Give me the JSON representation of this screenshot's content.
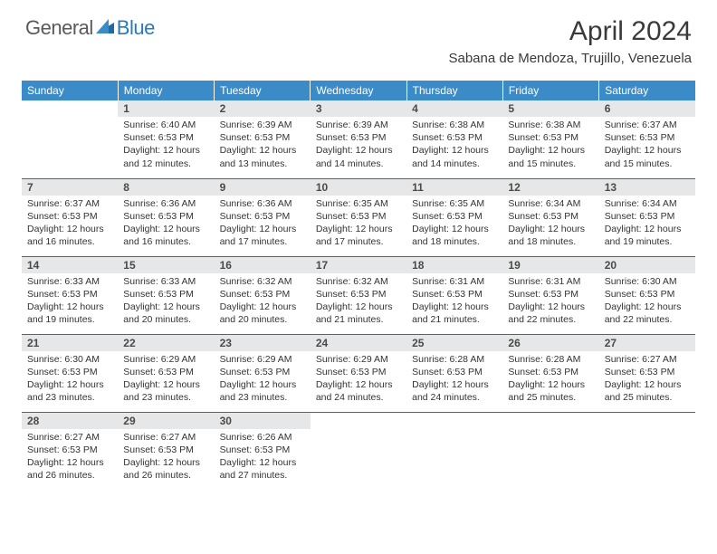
{
  "brand": {
    "general": "General",
    "blue": "Blue",
    "logo_color": "#2a7ab8",
    "text_color": "#5a5a5a"
  },
  "title": "April 2024",
  "location": "Sabana de Mendoza, Trujillo, Venezuela",
  "colors": {
    "header_bg": "#3b8bc9",
    "header_fg": "#ffffff",
    "daynum_bg": "#e6e7e8",
    "daynum_fg": "#4a4a4a",
    "cell_border": "#2a6fa8",
    "body_text": "#333333",
    "page_bg": "#ffffff"
  },
  "typography": {
    "title_fontsize": 30,
    "location_fontsize": 15,
    "dayheader_fontsize": 12,
    "daynum_fontsize": 12,
    "body_fontsize": 10.5,
    "font_family": "Arial"
  },
  "day_headers": [
    "Sunday",
    "Monday",
    "Tuesday",
    "Wednesday",
    "Thursday",
    "Friday",
    "Saturday"
  ],
  "weeks": [
    [
      {
        "empty": true
      },
      {
        "num": "1",
        "sunrise": "Sunrise: 6:40 AM",
        "sunset": "Sunset: 6:53 PM",
        "daylight": "Daylight: 12 hours and 12 minutes."
      },
      {
        "num": "2",
        "sunrise": "Sunrise: 6:39 AM",
        "sunset": "Sunset: 6:53 PM",
        "daylight": "Daylight: 12 hours and 13 minutes."
      },
      {
        "num": "3",
        "sunrise": "Sunrise: 6:39 AM",
        "sunset": "Sunset: 6:53 PM",
        "daylight": "Daylight: 12 hours and 14 minutes."
      },
      {
        "num": "4",
        "sunrise": "Sunrise: 6:38 AM",
        "sunset": "Sunset: 6:53 PM",
        "daylight": "Daylight: 12 hours and 14 minutes."
      },
      {
        "num": "5",
        "sunrise": "Sunrise: 6:38 AM",
        "sunset": "Sunset: 6:53 PM",
        "daylight": "Daylight: 12 hours and 15 minutes."
      },
      {
        "num": "6",
        "sunrise": "Sunrise: 6:37 AM",
        "sunset": "Sunset: 6:53 PM",
        "daylight": "Daylight: 12 hours and 15 minutes."
      }
    ],
    [
      {
        "num": "7",
        "sunrise": "Sunrise: 6:37 AM",
        "sunset": "Sunset: 6:53 PM",
        "daylight": "Daylight: 12 hours and 16 minutes."
      },
      {
        "num": "8",
        "sunrise": "Sunrise: 6:36 AM",
        "sunset": "Sunset: 6:53 PM",
        "daylight": "Daylight: 12 hours and 16 minutes."
      },
      {
        "num": "9",
        "sunrise": "Sunrise: 6:36 AM",
        "sunset": "Sunset: 6:53 PM",
        "daylight": "Daylight: 12 hours and 17 minutes."
      },
      {
        "num": "10",
        "sunrise": "Sunrise: 6:35 AM",
        "sunset": "Sunset: 6:53 PM",
        "daylight": "Daylight: 12 hours and 17 minutes."
      },
      {
        "num": "11",
        "sunrise": "Sunrise: 6:35 AM",
        "sunset": "Sunset: 6:53 PM",
        "daylight": "Daylight: 12 hours and 18 minutes."
      },
      {
        "num": "12",
        "sunrise": "Sunrise: 6:34 AM",
        "sunset": "Sunset: 6:53 PM",
        "daylight": "Daylight: 12 hours and 18 minutes."
      },
      {
        "num": "13",
        "sunrise": "Sunrise: 6:34 AM",
        "sunset": "Sunset: 6:53 PM",
        "daylight": "Daylight: 12 hours and 19 minutes."
      }
    ],
    [
      {
        "num": "14",
        "sunrise": "Sunrise: 6:33 AM",
        "sunset": "Sunset: 6:53 PM",
        "daylight": "Daylight: 12 hours and 19 minutes."
      },
      {
        "num": "15",
        "sunrise": "Sunrise: 6:33 AM",
        "sunset": "Sunset: 6:53 PM",
        "daylight": "Daylight: 12 hours and 20 minutes."
      },
      {
        "num": "16",
        "sunrise": "Sunrise: 6:32 AM",
        "sunset": "Sunset: 6:53 PM",
        "daylight": "Daylight: 12 hours and 20 minutes."
      },
      {
        "num": "17",
        "sunrise": "Sunrise: 6:32 AM",
        "sunset": "Sunset: 6:53 PM",
        "daylight": "Daylight: 12 hours and 21 minutes."
      },
      {
        "num": "18",
        "sunrise": "Sunrise: 6:31 AM",
        "sunset": "Sunset: 6:53 PM",
        "daylight": "Daylight: 12 hours and 21 minutes."
      },
      {
        "num": "19",
        "sunrise": "Sunrise: 6:31 AM",
        "sunset": "Sunset: 6:53 PM",
        "daylight": "Daylight: 12 hours and 22 minutes."
      },
      {
        "num": "20",
        "sunrise": "Sunrise: 6:30 AM",
        "sunset": "Sunset: 6:53 PM",
        "daylight": "Daylight: 12 hours and 22 minutes."
      }
    ],
    [
      {
        "num": "21",
        "sunrise": "Sunrise: 6:30 AM",
        "sunset": "Sunset: 6:53 PM",
        "daylight": "Daylight: 12 hours and 23 minutes."
      },
      {
        "num": "22",
        "sunrise": "Sunrise: 6:29 AM",
        "sunset": "Sunset: 6:53 PM",
        "daylight": "Daylight: 12 hours and 23 minutes."
      },
      {
        "num": "23",
        "sunrise": "Sunrise: 6:29 AM",
        "sunset": "Sunset: 6:53 PM",
        "daylight": "Daylight: 12 hours and 23 minutes."
      },
      {
        "num": "24",
        "sunrise": "Sunrise: 6:29 AM",
        "sunset": "Sunset: 6:53 PM",
        "daylight": "Daylight: 12 hours and 24 minutes."
      },
      {
        "num": "25",
        "sunrise": "Sunrise: 6:28 AM",
        "sunset": "Sunset: 6:53 PM",
        "daylight": "Daylight: 12 hours and 24 minutes."
      },
      {
        "num": "26",
        "sunrise": "Sunrise: 6:28 AM",
        "sunset": "Sunset: 6:53 PM",
        "daylight": "Daylight: 12 hours and 25 minutes."
      },
      {
        "num": "27",
        "sunrise": "Sunrise: 6:27 AM",
        "sunset": "Sunset: 6:53 PM",
        "daylight": "Daylight: 12 hours and 25 minutes."
      }
    ],
    [
      {
        "num": "28",
        "sunrise": "Sunrise: 6:27 AM",
        "sunset": "Sunset: 6:53 PM",
        "daylight": "Daylight: 12 hours and 26 minutes."
      },
      {
        "num": "29",
        "sunrise": "Sunrise: 6:27 AM",
        "sunset": "Sunset: 6:53 PM",
        "daylight": "Daylight: 12 hours and 26 minutes."
      },
      {
        "num": "30",
        "sunrise": "Sunrise: 6:26 AM",
        "sunset": "Sunset: 6:53 PM",
        "daylight": "Daylight: 12 hours and 27 minutes."
      },
      {
        "empty": true
      },
      {
        "empty": true
      },
      {
        "empty": true
      },
      {
        "empty": true
      }
    ]
  ]
}
